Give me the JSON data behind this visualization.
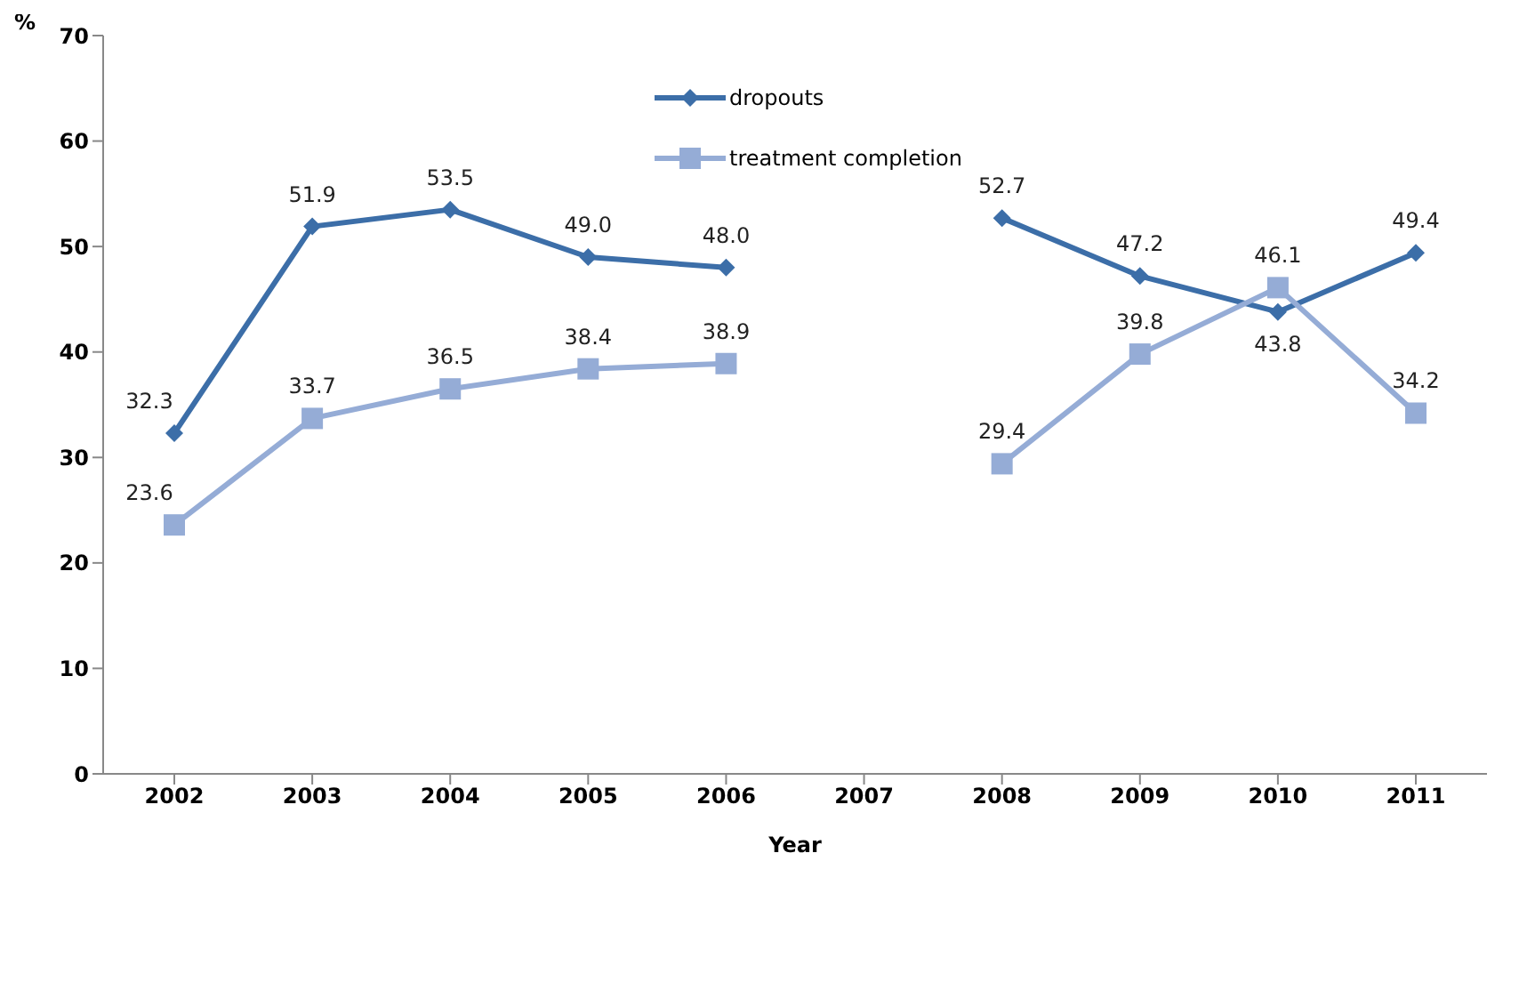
{
  "chart_data": {
    "type": "line",
    "xlabel": "Year",
    "ylabel": "%",
    "categories": [
      "2002",
      "2003",
      "2004",
      "2005",
      "2006",
      "2007",
      "2008",
      "2009",
      "2010",
      "2011"
    ],
    "series": [
      {
        "name": "dropouts",
        "color": "#3c6ea8",
        "marker": "diamond",
        "values": [
          32.3,
          51.9,
          53.5,
          49.0,
          48.0,
          null,
          52.7,
          47.2,
          43.8,
          49.4
        ],
        "value_labels": [
          "32.3",
          "51.9",
          "53.5",
          "49.0",
          "48.0",
          null,
          "52.7",
          "47.2",
          "43.8",
          "49.4"
        ]
      },
      {
        "name": "treatment completion",
        "color": "#95acd6",
        "marker": "square",
        "values": [
          23.6,
          33.7,
          36.5,
          38.4,
          38.9,
          null,
          29.4,
          39.8,
          46.1,
          34.2
        ],
        "value_labels": [
          "23.6",
          "33.7",
          "36.5",
          "38.4",
          "38.9",
          null,
          "29.4",
          "39.8",
          "46.1",
          "34.2"
        ]
      }
    ],
    "ylim": [
      0,
      70
    ],
    "yticks": [
      0,
      10,
      20,
      30,
      40,
      50,
      60,
      70
    ],
    "grid": false,
    "legend": "top",
    "line_style": "solid"
  }
}
